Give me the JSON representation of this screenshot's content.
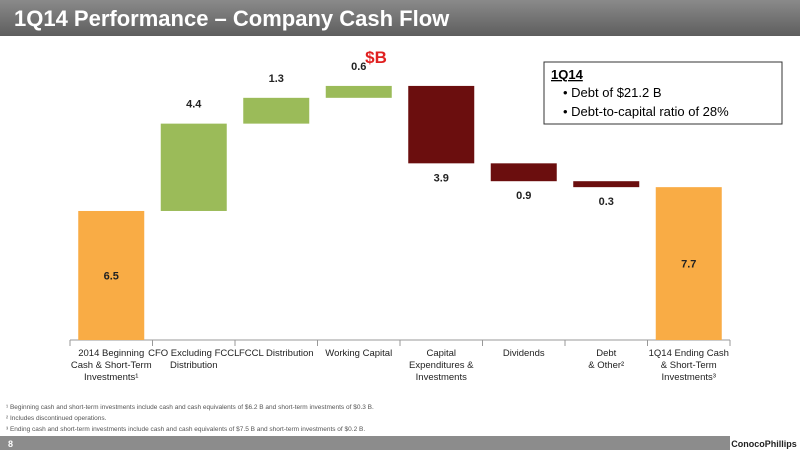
{
  "header": {
    "title": "1Q14 Performance – Company Cash Flow"
  },
  "chart_data": {
    "type": "waterfall",
    "unit": "$B",
    "categories": [
      [
        "2014 Beginning",
        "Cash & Short-Term",
        "Investments¹"
      ],
      [
        "CFO Excluding FCCL",
        "Distribution"
      ],
      [
        "FCCL Distribution"
      ],
      [
        "Working Capital"
      ],
      [
        "Capital",
        "Expenditures &",
        "Investments"
      ],
      [
        "Dividends"
      ],
      [
        "Debt",
        "& Other²"
      ],
      [
        "1Q14 Ending Cash",
        "& Short-Term",
        "Investments³"
      ]
    ],
    "values": [
      6.5,
      4.4,
      1.3,
      0.6,
      -3.9,
      -0.9,
      -0.3,
      7.7
    ],
    "value_labels": [
      "6.5",
      "4.4",
      "1.3",
      "0.6",
      "3.9",
      "0.9",
      "0.3",
      "7.7"
    ],
    "colors": {
      "total": "#f9ac45",
      "increase": "#9bbb59",
      "decrease": "#6b0e0e"
    }
  },
  "callout": {
    "title": "1Q14",
    "bullets": [
      "Debt of $21.2 B",
      "Debt-to-capital ratio of 28%"
    ]
  },
  "footnotes": [
    "¹ Beginning cash and short-term investments include cash and cash equivalents of $6.2 B and short-term investments of $0.3 B.",
    "² Includes discontinued operations.",
    "³ Ending cash and short-term investments include cash and cash equivalents of $7.5 B and short-term investments of $0.2 B."
  ],
  "footer": {
    "page": "8",
    "logo": "ConocoPhillips"
  }
}
